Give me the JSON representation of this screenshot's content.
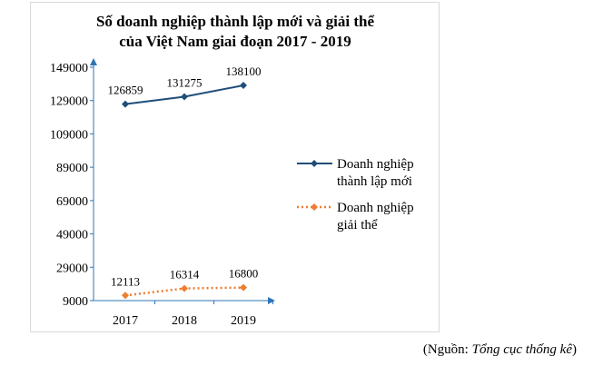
{
  "chart_data": {
    "type": "line",
    "title": "Số doanh nghiệp thành lập mới và giải thể",
    "subtitle": "của Việt Nam giai đoạn 2017 - 2019",
    "categories": [
      "2017",
      "2018",
      "2019"
    ],
    "yticks": [
      9000,
      29000,
      49000,
      69000,
      89000,
      109000,
      129000,
      149000
    ],
    "ylim": [
      9000,
      149000
    ],
    "series": [
      {
        "name": "Doanh nghiệp thành lập mới",
        "legend_lines": [
          "Doanh nghiệp",
          "thành lập mới"
        ],
        "values": [
          126859,
          131275,
          138100
        ],
        "labels": [
          "126859",
          "131275",
          "138100"
        ],
        "color": "#1f4e79",
        "style": "solid",
        "marker": "diamond"
      },
      {
        "name": "Doanh nghiệp giải thể",
        "legend_lines": [
          "Doanh nghiệp",
          "giải thể"
        ],
        "values": [
          12113,
          16314,
          16800
        ],
        "labels": [
          "12113",
          "16314",
          "16800"
        ],
        "color": "#ed7d31",
        "style": "dotted",
        "marker": "diamond"
      }
    ],
    "axis_color": "#2e75b6",
    "legend_position": "right"
  },
  "source": {
    "prefix": "(Nguồn: ",
    "name": "Tổng cục thống kê",
    "suffix": ")"
  }
}
